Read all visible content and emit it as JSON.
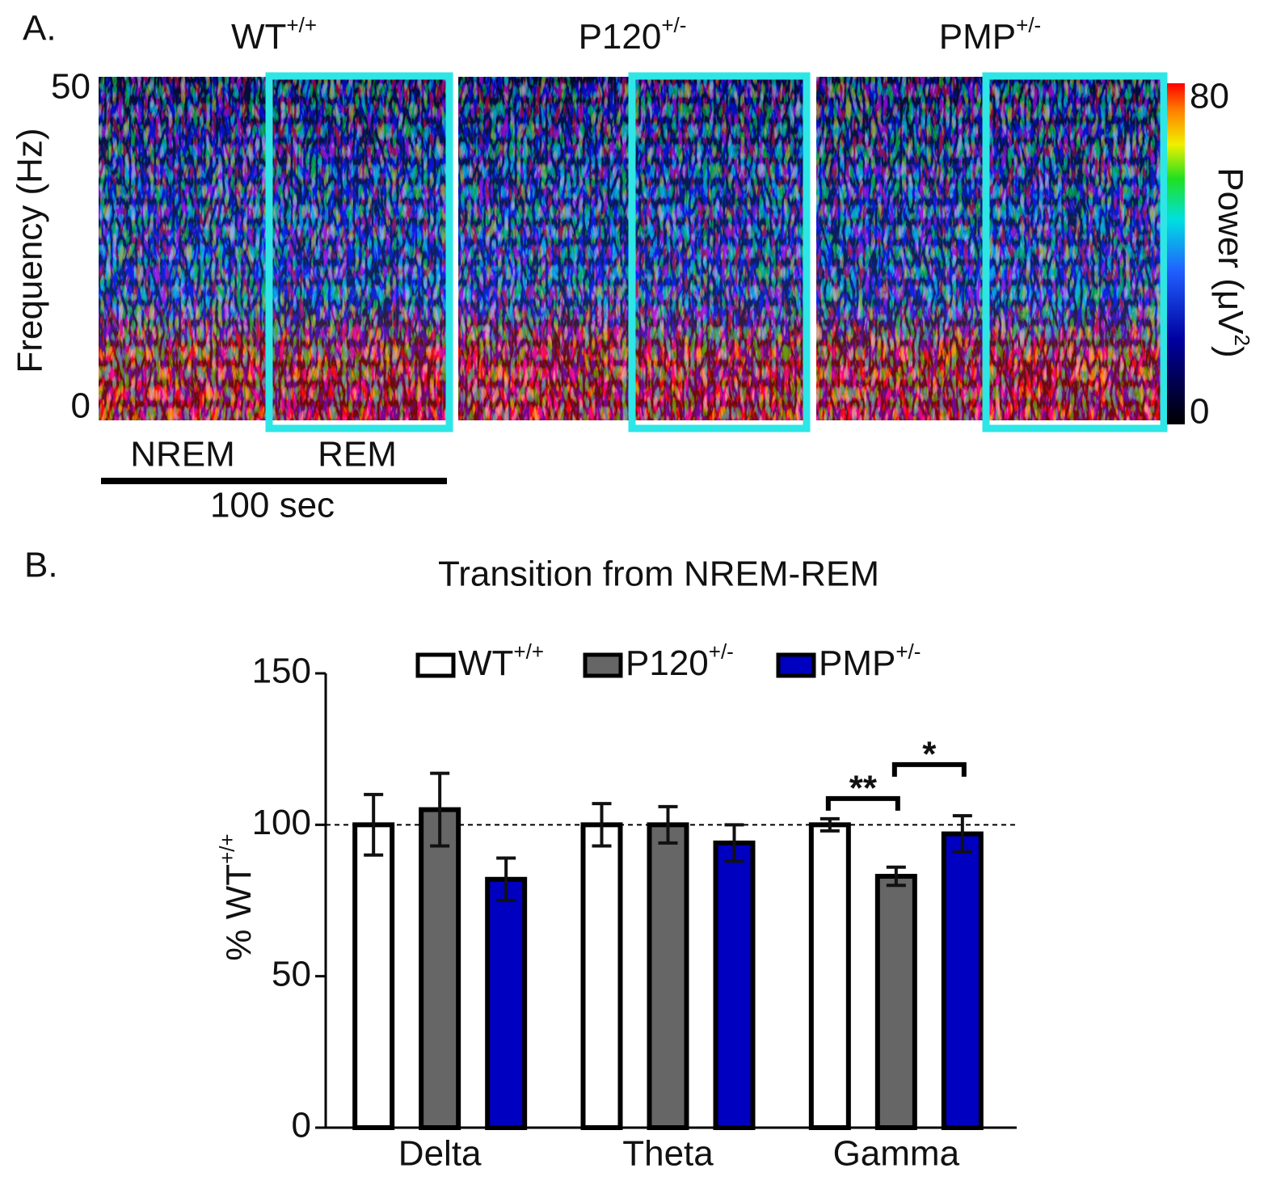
{
  "chart_data": [
    {
      "type": "spectrogram",
      "panel_label": "A.",
      "panels": [
        {
          "title": {
            "text": "WT",
            "sup": "+/+"
          }
        },
        {
          "title": {
            "text": "P120",
            "sup": "+/-"
          }
        },
        {
          "title": {
            "text": "PMP",
            "sup": "+/-"
          }
        }
      ],
      "ylabel": "Frequency (Hz)",
      "ylim": [
        0,
        50
      ],
      "yticks": [
        0,
        50
      ],
      "colorbar_label": {
        "text": "Power (μV",
        "sup": "2",
        "tail": ")"
      },
      "clim": [
        0,
        80
      ],
      "cticks": [
        0,
        80
      ],
      "segments": [
        "NREM",
        "REM"
      ],
      "scale_bar": "100 sec"
    },
    {
      "type": "bar",
      "panel_label": "B.",
      "title": "Transition from NREM-REM",
      "ylabel": {
        "text": "% WT",
        "sup": "+/+"
      },
      "categories": [
        "Delta",
        "Theta",
        "Gamma"
      ],
      "series": [
        {
          "name": "WT",
          "sup": "+/+",
          "color": "#ffffff",
          "values": [
            100,
            100,
            100
          ],
          "errors": [
            10,
            7,
            2
          ]
        },
        {
          "name": "P120",
          "sup": "+/-",
          "color": "#666666",
          "values": [
            105,
            100,
            83
          ],
          "errors": [
            12,
            6,
            3
          ]
        },
        {
          "name": "PMP",
          "sup": "+/-",
          "color": "#0000c0",
          "values": [
            82,
            94,
            97
          ],
          "errors": [
            7,
            6,
            6
          ]
        }
      ],
      "ylim": [
        0,
        150
      ],
      "yticks": [
        0,
        50,
        100,
        150
      ],
      "reference_line": 100,
      "annotations": [
        "**",
        "*"
      ]
    }
  ]
}
